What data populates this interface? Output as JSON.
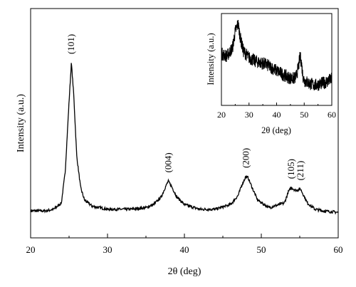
{
  "chart_data": [
    {
      "type": "line",
      "xlabel": "2θ (deg)",
      "ylabel": "Intensity (a.u.)",
      "xlim": [
        20,
        60
      ],
      "xticks": [
        "20",
        "30",
        "40",
        "50",
        "60"
      ],
      "peaks": [
        {
          "x": 25.3,
          "label": "(101)"
        },
        {
          "x": 37.9,
          "label": "(004)"
        },
        {
          "x": 48.0,
          "label": "(200)"
        },
        {
          "x": 53.9,
          "label": "(105)"
        },
        {
          "x": 55.1,
          "label": "(211)"
        }
      ],
      "x": [
        20,
        22,
        23,
        24,
        24.5,
        25,
        25.3,
        25.6,
        26,
        26.5,
        27,
        28,
        30,
        33,
        35,
        36,
        37,
        37.5,
        37.9,
        38.3,
        39,
        40,
        42,
        44,
        46,
        47,
        47.5,
        48,
        48.3,
        48.8,
        49.5,
        51,
        53,
        53.5,
        53.9,
        54.5,
        55.1,
        55.5,
        56,
        57,
        58,
        60
      ],
      "y": [
        0.05,
        0.05,
        0.06,
        0.1,
        0.3,
        0.75,
        1.0,
        0.8,
        0.4,
        0.2,
        0.12,
        0.08,
        0.06,
        0.06,
        0.07,
        0.09,
        0.14,
        0.2,
        0.24,
        0.21,
        0.14,
        0.09,
        0.06,
        0.06,
        0.09,
        0.15,
        0.22,
        0.27,
        0.26,
        0.2,
        0.12,
        0.07,
        0.1,
        0.17,
        0.2,
        0.18,
        0.19,
        0.15,
        0.1,
        0.06,
        0.05,
        0.04
      ]
    },
    {
      "type": "line",
      "inset": true,
      "xlabel": "2θ (deg)",
      "ylabel": "Intensity (a.u.)",
      "xlim": [
        20,
        60
      ],
      "xticks": [
        "20",
        "30",
        "40",
        "50",
        "60"
      ],
      "x": [
        20,
        22,
        24,
        25,
        26,
        27,
        28,
        30,
        32,
        34,
        36,
        38,
        40,
        42,
        44,
        46,
        47,
        48,
        48.5,
        49,
        49.5,
        50,
        52,
        54,
        56,
        58,
        60
      ],
      "y": [
        0.55,
        0.52,
        0.62,
        0.82,
        0.92,
        0.72,
        0.58,
        0.5,
        0.46,
        0.44,
        0.42,
        0.38,
        0.34,
        0.3,
        0.26,
        0.24,
        0.26,
        0.4,
        0.52,
        0.44,
        0.28,
        0.22,
        0.18,
        0.16,
        0.18,
        0.2,
        0.24
      ]
    }
  ]
}
